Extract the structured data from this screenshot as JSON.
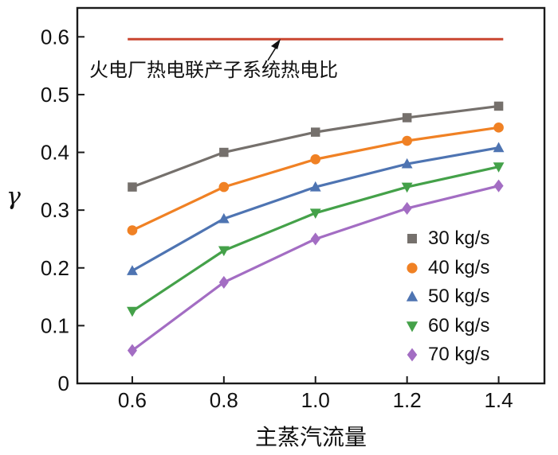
{
  "chart_data": {
    "type": "line",
    "title": "",
    "xlabel": "主蒸汽流量",
    "ylabel": "γ",
    "x": [
      0.6,
      0.8,
      1.0,
      1.2,
      1.4
    ],
    "xtick_labels": [
      "0.6",
      "0.8",
      "1.0",
      "1.2",
      "1.4"
    ],
    "yticks": [
      0,
      0.1,
      0.2,
      0.3,
      0.4,
      0.5,
      0.6
    ],
    "ytick_labels": [
      "0",
      "0.1",
      "0.2",
      "0.3",
      "0.4",
      "0.5",
      "0.6"
    ],
    "xlim": [
      0.48,
      1.5
    ],
    "ylim": [
      0,
      0.65
    ],
    "grid": false,
    "legend_position": "lower-right",
    "series": [
      {
        "name": "30 kg/s",
        "marker": "square",
        "color": "#75706c",
        "values": [
          0.34,
          0.4,
          0.435,
          0.46,
          0.48
        ]
      },
      {
        "name": "40 kg/s",
        "marker": "circle",
        "color": "#f08124",
        "values": [
          0.265,
          0.34,
          0.388,
          0.42,
          0.443
        ]
      },
      {
        "name": "50 kg/s",
        "marker": "triangle-up",
        "color": "#4e74b2",
        "values": [
          0.195,
          0.285,
          0.34,
          0.38,
          0.408
        ]
      },
      {
        "name": "60 kg/s",
        "marker": "triangle-down",
        "color": "#44a149",
        "values": [
          0.125,
          0.23,
          0.295,
          0.34,
          0.375
        ]
      },
      {
        "name": "70 kg/s",
        "marker": "diamond",
        "color": "#a36dc3",
        "values": [
          0.057,
          0.175,
          0.25,
          0.303,
          0.342
        ]
      }
    ],
    "reference_line": {
      "value": 0.596,
      "x_start": 0.59,
      "x_end": 1.41,
      "color": "#c9452f",
      "label": "火电厂热电联产子系统热电比"
    },
    "axis_color": "#1a1a1a"
  }
}
